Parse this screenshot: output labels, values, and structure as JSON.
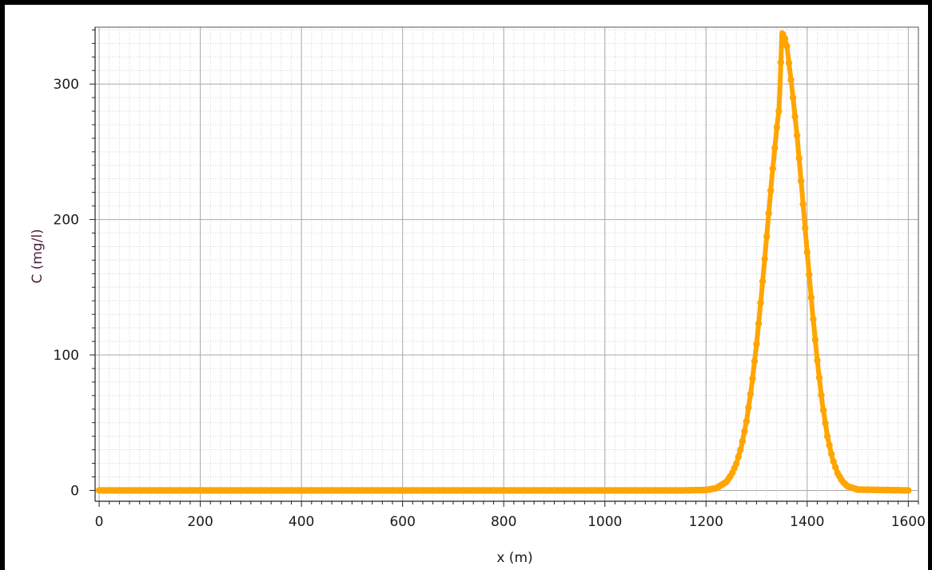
{
  "chart_data": {
    "type": "scatter",
    "xlabel": "x (m)",
    "ylabel": "C (mg/l)",
    "xlim": [
      -8,
      1620
    ],
    "ylim": [
      -8,
      342
    ],
    "x_ticks": [
      0,
      200,
      400,
      600,
      800,
      1000,
      1200,
      1400,
      1600
    ],
    "y_ticks": [
      0,
      100,
      200,
      300
    ],
    "x_minor_step": 20,
    "y_minor_step": 10,
    "grid": true,
    "series": [
      {
        "color": "#ffa500",
        "x": [
          0,
          200,
          400,
          600,
          800,
          1000,
          1150,
          1200,
          1220,
          1240,
          1250,
          1260,
          1270,
          1280,
          1290,
          1300,
          1310,
          1320,
          1330,
          1340,
          1345,
          1350,
          1355,
          1360,
          1370,
          1380,
          1390,
          1400,
          1410,
          1420,
          1430,
          1440,
          1450,
          1460,
          1470,
          1480,
          1500,
          1600
        ],
        "y": [
          0,
          0,
          0,
          0,
          0,
          0,
          0,
          0.3,
          1.6,
          6.2,
          11.4,
          19.7,
          32.5,
          51.0,
          76.2,
          108.0,
          146.0,
          187.5,
          230.0,
          268.0,
          283.0,
          338.0,
          335.0,
          328.0,
          297.0,
          262.0,
          220.0,
          176.0,
          134.0,
          96.0,
          64.0,
          40.0,
          23.5,
          12.8,
          6.5,
          3.0,
          0.6,
          0
        ]
      }
    ]
  }
}
